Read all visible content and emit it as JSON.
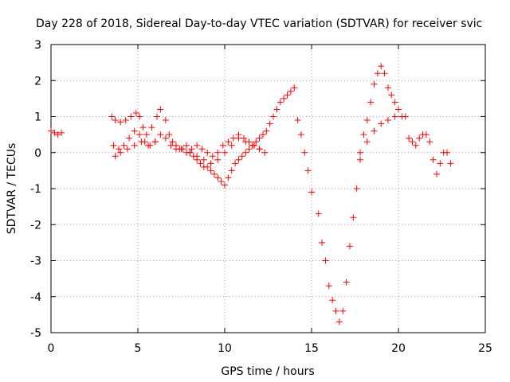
{
  "chart_data": {
    "type": "scatter",
    "title": "Day 228 of 2018, Sidereal Day-to-day VTEC variation (SDTVAR) for receiver svic",
    "xlabel": "GPS time / hours",
    "ylabel": "SDTVAR / TECUs",
    "xlim": [
      0,
      25
    ],
    "ylim": [
      -5,
      3
    ],
    "xticks": [
      0,
      5,
      10,
      15,
      20,
      25
    ],
    "yticks": [
      -5,
      -4,
      -3,
      -2,
      -1,
      0,
      1,
      2,
      3
    ],
    "grid": true,
    "marker": "+",
    "color": "#ff0000",
    "series": [
      {
        "name": "SDTVAR",
        "segments": [
          {
            "x": [
              0.0,
              0.2,
              0.4,
              0.6
            ],
            "y": [
              0.6,
              0.55,
              0.5,
              0.55
            ]
          },
          {
            "x": [
              3.5,
              3.7,
              4.0,
              4.3,
              4.6,
              4.9,
              5.1,
              5.3,
              5.5,
              5.8,
              6.1,
              6.3,
              6.6,
              6.8,
              7.0,
              7.2,
              7.4,
              7.6,
              7.8,
              8.0,
              8.2,
              8.4,
              8.6,
              8.8,
              9.0,
              9.2,
              9.4,
              9.6,
              9.8,
              10.0,
              10.2,
              10.4,
              10.6,
              10.8,
              11.0,
              11.2,
              11.4,
              11.6,
              11.8,
              12.0,
              12.2,
              12.4,
              12.6,
              12.8,
              13.0,
              13.2,
              13.4,
              13.6,
              13.8,
              14.0
            ],
            "y": [
              1.0,
              0.9,
              0.85,
              0.9,
              1.0,
              1.1,
              1.0,
              0.7,
              0.5,
              0.7,
              1.0,
              1.2,
              0.9,
              0.5,
              0.3,
              0.2,
              0.1,
              0.1,
              0.2,
              0.0,
              -0.1,
              -0.2,
              -0.3,
              -0.4,
              -0.4,
              -0.5,
              -0.6,
              -0.7,
              -0.8,
              -0.9,
              -0.7,
              -0.5,
              -0.3,
              -0.2,
              -0.1,
              0.0,
              0.1,
              0.2,
              0.3,
              0.4,
              0.5,
              0.6,
              0.8,
              1.0,
              1.2,
              1.4,
              1.5,
              1.6,
              1.7,
              1.8
            ]
          },
          {
            "x": [
              3.6,
              3.9,
              4.2,
              4.5,
              4.8,
              5.1,
              5.4,
              5.7,
              6.0,
              6.3,
              6.6,
              6.9,
              7.2,
              7.5,
              7.8,
              8.1,
              8.4,
              8.7,
              9.0,
              9.3,
              9.6,
              9.9,
              10.2,
              10.5,
              10.8,
              11.1,
              11.4,
              11.7,
              12.0,
              12.3
            ],
            "y": [
              0.2,
              0.1,
              0.2,
              0.4,
              0.6,
              0.5,
              0.3,
              0.2,
              0.3,
              0.5,
              0.4,
              0.2,
              0.1,
              0.1,
              0.0,
              0.1,
              0.2,
              0.1,
              0.0,
              -0.1,
              0.0,
              0.2,
              0.3,
              0.4,
              0.5,
              0.4,
              0.3,
              0.2,
              0.1,
              0.0
            ]
          },
          {
            "x": [
              3.7,
              4.0,
              4.4,
              4.8,
              5.2,
              5.6,
              6.0,
              8.0,
              8.4,
              8.8,
              9.2,
              9.6,
              10.0,
              10.4,
              10.8,
              11.2,
              11.6,
              12.0
            ],
            "y": [
              -0.1,
              0.0,
              0.1,
              0.2,
              0.3,
              0.2,
              0.3,
              0.0,
              -0.1,
              -0.2,
              -0.3,
              -0.2,
              0.0,
              0.2,
              0.4,
              0.3,
              0.2,
              0.1
            ]
          },
          {
            "x": [
              14.2,
              14.4,
              14.6,
              14.8,
              15.0
            ],
            "y": [
              0.9,
              0.5,
              0.0,
              -0.5,
              -1.1
            ]
          },
          {
            "x": [
              15.4,
              15.6,
              15.8,
              16.0,
              16.2,
              16.4,
              16.6,
              16.8,
              17.0,
              17.2,
              17.4,
              17.6,
              17.8,
              18.0,
              18.2,
              18.4,
              18.6,
              18.8,
              19.0,
              19.2,
              19.4,
              19.6,
              19.8,
              20.0,
              20.2
            ],
            "y": [
              -1.7,
              -2.5,
              -3.0,
              -3.7,
              -4.1,
              -4.4,
              -4.7,
              -4.4,
              -3.6,
              -2.6,
              -1.8,
              -1.0,
              -0.2,
              0.5,
              0.9,
              1.4,
              1.9,
              2.2,
              2.4,
              2.2,
              1.8,
              1.6,
              1.4,
              1.2,
              1.0
            ]
          },
          {
            "x": [
              17.8,
              18.2,
              18.6,
              19.0,
              19.4,
              19.8
            ],
            "y": [
              0.0,
              0.3,
              0.6,
              0.8,
              0.9,
              1.0
            ]
          },
          {
            "x": [
              20.4,
              20.6,
              20.8,
              21.0,
              21.2,
              21.4,
              21.6,
              21.8,
              22.0,
              22.2,
              22.4,
              22.6,
              22.8,
              23.0
            ],
            "y": [
              1.0,
              0.4,
              0.3,
              0.2,
              0.4,
              0.5,
              0.5,
              0.3,
              -0.2,
              -0.6,
              -0.3,
              0.0,
              0.0,
              -0.3
            ]
          }
        ]
      }
    ]
  }
}
